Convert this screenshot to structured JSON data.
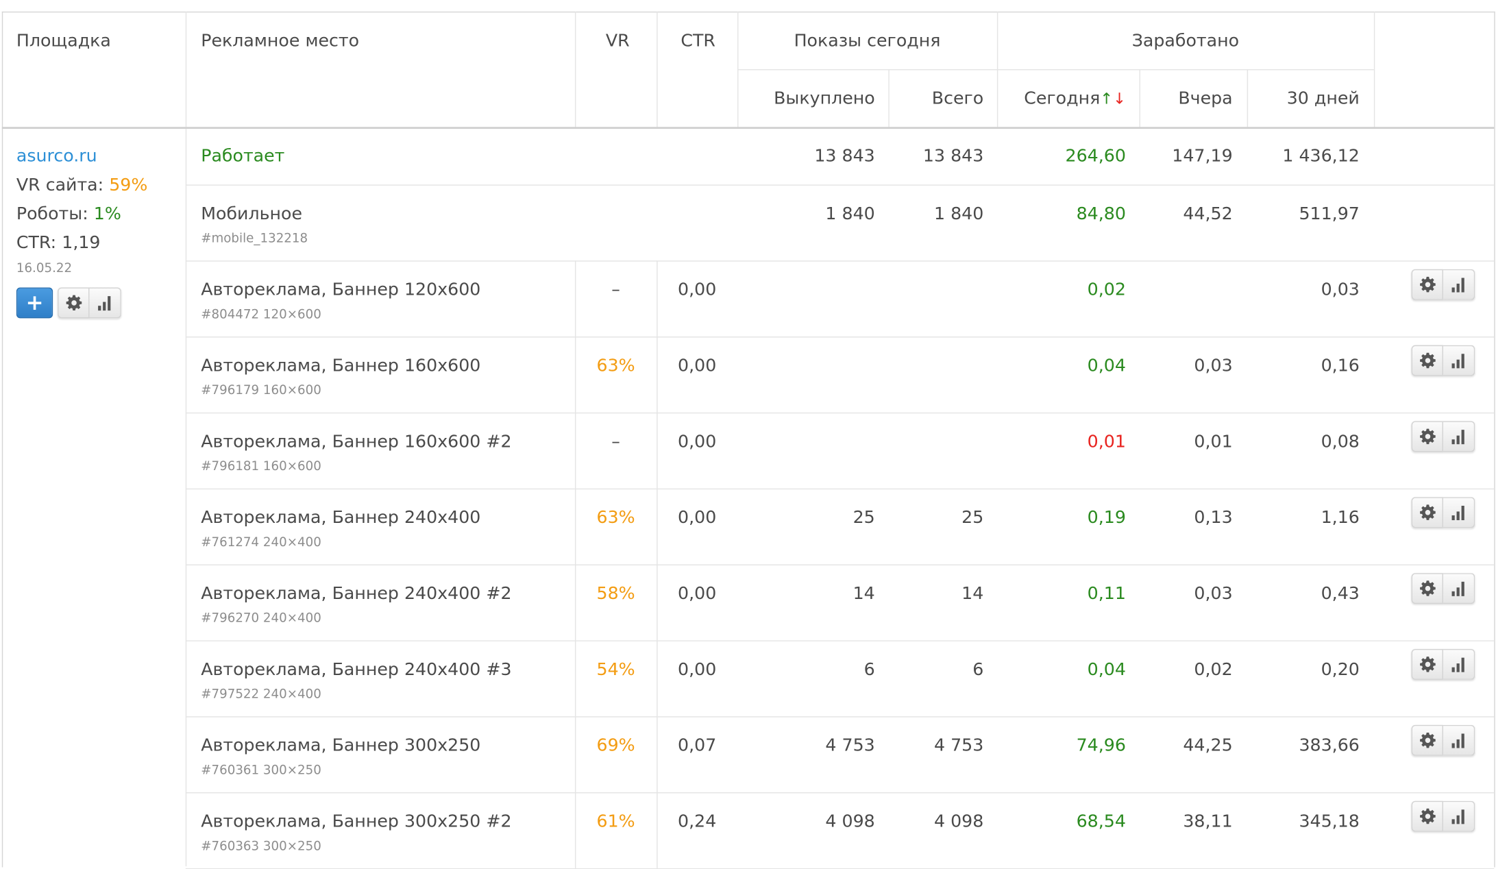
{
  "header": {
    "site": "Площадка",
    "place": "Рекламное место",
    "vr": "VR",
    "ctr": "CTR",
    "shows_today": "Показы сегодня",
    "earned": "Заработано",
    "bought": "Выкуплено",
    "total": "Всего",
    "today": "Сегодня",
    "yesterday": "Вчера",
    "days30": "30 дней"
  },
  "site": {
    "name": "asurco.ru",
    "vr_label": "VR сайта:",
    "vr_value": "59%",
    "bots_label": "Роботы:",
    "bots_value": "1%",
    "ctr_label": "CTR:",
    "ctr_value": "1,19",
    "date": "16.05.22",
    "add_label": "+"
  },
  "summary": {
    "status": "Работает",
    "bought": "13 843",
    "total": "13 843",
    "today": "264,60",
    "yesterday": "147,19",
    "days30": "1 436,12"
  },
  "mobile": {
    "name": "Мобильное",
    "id": "#mobile_132218",
    "bought": "1 840",
    "total": "1 840",
    "today": "84,80",
    "yesterday": "44,52",
    "days30": "511,97"
  },
  "rows": [
    {
      "name": "Автореклама, Баннер 120x600",
      "id": "#804472 120×600",
      "vr": "–",
      "vr_color": "gray",
      "ctr": "0,00",
      "bought": "",
      "total": "",
      "today": "0,02",
      "today_color": "green",
      "yesterday": "",
      "days30": "0,03"
    },
    {
      "name": "Автореклама, Баннер 160x600",
      "id": "#796179 160×600",
      "vr": "63%",
      "vr_color": "orange",
      "ctr": "0,00",
      "bought": "",
      "total": "",
      "today": "0,04",
      "today_color": "green",
      "yesterday": "0,03",
      "days30": "0,16"
    },
    {
      "name": "Автореклама, Баннер 160x600 #2",
      "id": "#796181 160×600",
      "vr": "–",
      "vr_color": "gray",
      "ctr": "0,00",
      "bought": "",
      "total": "",
      "today": "0,01",
      "today_color": "red",
      "yesterday": "0,01",
      "days30": "0,08"
    },
    {
      "name": "Автореклама, Баннер 240x400",
      "id": "#761274 240×400",
      "vr": "63%",
      "vr_color": "orange",
      "ctr": "0,00",
      "bought": "25",
      "total": "25",
      "today": "0,19",
      "today_color": "green",
      "yesterday": "0,13",
      "days30": "1,16"
    },
    {
      "name": "Автореклама, Баннер 240x400 #2",
      "id": "#796270 240×400",
      "vr": "58%",
      "vr_color": "orange",
      "ctr": "0,00",
      "bought": "14",
      "total": "14",
      "today": "0,11",
      "today_color": "green",
      "yesterday": "0,03",
      "days30": "0,43"
    },
    {
      "name": "Автореклама, Баннер 240x400 #3",
      "id": "#797522 240×400",
      "vr": "54%",
      "vr_color": "orange",
      "ctr": "0,00",
      "bought": "6",
      "total": "6",
      "today": "0,04",
      "today_color": "green",
      "yesterday": "0,02",
      "days30": "0,20"
    },
    {
      "name": "Автореклама, Баннер 300x250",
      "id": "#760361 300×250",
      "vr": "69%",
      "vr_color": "orange",
      "ctr": "0,07",
      "bought": "4 753",
      "total": "4 753",
      "today": "74,96",
      "today_color": "green",
      "yesterday": "44,25",
      "days30": "383,66"
    },
    {
      "name": "Автореклама, Баннер 300x250 #2",
      "id": "#760363 300×250",
      "vr": "61%",
      "vr_color": "orange",
      "ctr": "0,24",
      "bought": "4 098",
      "total": "4 098",
      "today": "68,54",
      "today_color": "green",
      "yesterday": "38,11",
      "days30": "345,18"
    }
  ],
  "colors": {
    "green": "#2a8a1f",
    "orange": "#f39c12",
    "red": "#e8231f",
    "link": "#2c8fd6"
  },
  "icons": {
    "settings": "gear-icon",
    "stats": "bar-chart-icon",
    "sort": "sort-arrows-icon"
  }
}
